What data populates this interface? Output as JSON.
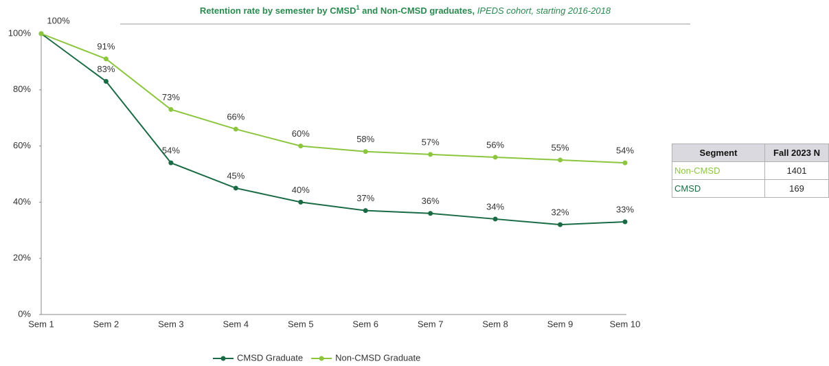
{
  "chart_data": {
    "type": "line",
    "title": "Retention rate by semester by CMSD",
    "title_superscript": "1",
    "title_continued": " and Non-CMSD graduates, ",
    "subtitle": "IPEDS cohort, starting 2016-2018",
    "categories": [
      "Sem 1",
      "Sem 2",
      "Sem 3",
      "Sem 4",
      "Sem 5",
      "Sem 6",
      "Sem 7",
      "Sem 8",
      "Sem 9",
      "Sem 10"
    ],
    "series": [
      {
        "name": "CMSD Graduate",
        "color": "#1a6b45",
        "values": [
          100,
          83,
          54,
          45,
          40,
          37,
          36,
          34,
          32,
          33
        ],
        "value_labels": [
          null,
          "83%",
          "54%",
          "45%",
          "40%",
          "37%",
          "36%",
          "34%",
          "32%",
          "33%"
        ]
      },
      {
        "name": "Non-CMSD Graduate",
        "color": "#8cc63f",
        "values": [
          100,
          91,
          73,
          66,
          60,
          58,
          57,
          56,
          55,
          54
        ],
        "value_labels": [
          "100%",
          "91%",
          "73%",
          "66%",
          "60%",
          "58%",
          "57%",
          "56%",
          "55%",
          "54%"
        ]
      }
    ],
    "ylim": [
      0,
      100
    ],
    "yticks": [
      {
        "value": 0,
        "label": "0%"
      },
      {
        "value": 20,
        "label": "20%"
      },
      {
        "value": 40,
        "label": "40%"
      },
      {
        "value": 60,
        "label": "60%"
      },
      {
        "value": 80,
        "label": "80%"
      },
      {
        "value": 100,
        "label": "100%"
      }
    ],
    "legend": "bottom"
  },
  "table": {
    "header": [
      "Segment",
      "Fall 2023 N"
    ],
    "rows": [
      [
        "Non-CMSD",
        1401
      ],
      [
        "CMSD",
        169
      ]
    ]
  }
}
